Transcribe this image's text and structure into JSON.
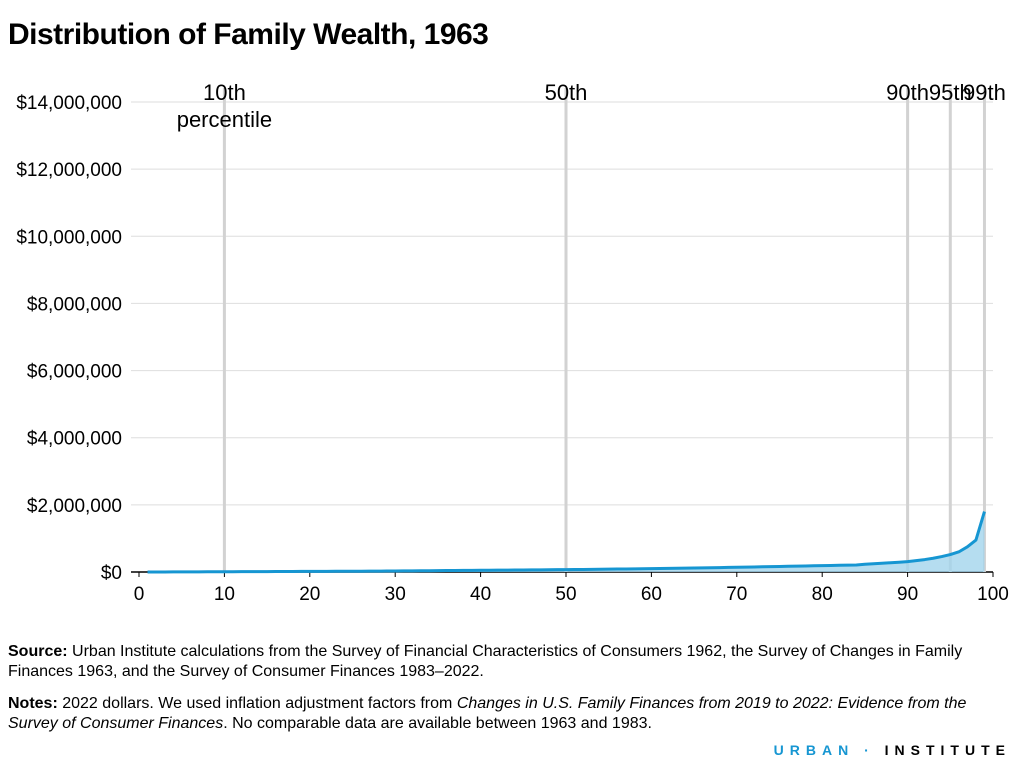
{
  "chart_data": {
    "type": "area",
    "title": "Distribution of Family Wealth, 1963",
    "x": [
      1,
      2,
      3,
      4,
      5,
      6,
      7,
      8,
      9,
      10,
      11,
      12,
      13,
      14,
      15,
      16,
      17,
      18,
      19,
      20,
      21,
      22,
      23,
      24,
      25,
      26,
      27,
      28,
      29,
      30,
      31,
      32,
      33,
      34,
      35,
      36,
      37,
      38,
      39,
      40,
      41,
      42,
      43,
      44,
      45,
      46,
      47,
      48,
      49,
      50,
      51,
      52,
      53,
      54,
      55,
      56,
      57,
      58,
      59,
      60,
      61,
      62,
      63,
      64,
      65,
      66,
      67,
      68,
      69,
      70,
      71,
      72,
      73,
      74,
      75,
      76,
      77,
      78,
      79,
      80,
      81,
      82,
      83,
      84,
      85,
      86,
      87,
      88,
      89,
      90,
      91,
      92,
      93,
      94,
      95,
      96,
      97,
      98,
      99
    ],
    "values": [
      0,
      0,
      1000,
      2000,
      3000,
      4000,
      5000,
      6000,
      7000,
      8000,
      9000,
      10000,
      11000,
      12000,
      13000,
      14000,
      15000,
      16000,
      17000,
      18000,
      19000,
      20000,
      21000,
      22000,
      23000,
      24000,
      25000,
      27000,
      29000,
      31000,
      33000,
      35000,
      37000,
      39000,
      41000,
      43000,
      45000,
      47000,
      49000,
      51000,
      53000,
      55000,
      57000,
      59000,
      61000,
      63000,
      65000,
      67000,
      69000,
      71000,
      73000,
      76000,
      79000,
      82000,
      85000,
      88000,
      91000,
      94000,
      97000,
      100000,
      104000,
      108000,
      112000,
      116000,
      120000,
      124000,
      128000,
      132000,
      136000,
      140000,
      145000,
      150000,
      155000,
      160000,
      165000,
      170000,
      175000,
      180000,
      185000,
      190000,
      195000,
      200000,
      205000,
      210000,
      230000,
      245000,
      260000,
      275000,
      290000,
      310000,
      340000,
      370000,
      410000,
      460000,
      520000,
      600000,
      750000,
      950000,
      1800000
    ],
    "color": "#1696d2",
    "area_color": "#a2d4ec",
    "xlim": [
      0,
      100
    ],
    "xticks": [
      0,
      10,
      20,
      30,
      40,
      50,
      60,
      70,
      80,
      90,
      100
    ],
    "ylim": [
      0,
      14000000
    ],
    "yticks": [
      {
        "value": 0,
        "label": "$0"
      },
      {
        "value": 2000000,
        "label": "$2,000,000"
      },
      {
        "value": 4000000,
        "label": "$4,000,000"
      },
      {
        "value": 6000000,
        "label": "$6,000,000"
      },
      {
        "value": 8000000,
        "label": "$8,000,000"
      },
      {
        "value": 10000000,
        "label": "$10,000,000"
      },
      {
        "value": 12000000,
        "label": "$12,000,000"
      },
      {
        "value": 14000000,
        "label": "$14,000,000"
      }
    ],
    "grid": true,
    "markers": [
      {
        "x": 10,
        "label": [
          "10th",
          "percentile"
        ]
      },
      {
        "x": 50,
        "label": [
          "50th"
        ]
      },
      {
        "x": 90,
        "label": [
          "90th"
        ]
      },
      {
        "x": 95,
        "label": [
          "95th"
        ]
      },
      {
        "x": 99,
        "label": [
          "99th"
        ]
      }
    ]
  },
  "footer": {
    "source_label": "Source:",
    "source": "Urban Institute calculations from the Survey of Financial Characteristics of Consumers 1962, the Survey of Changes in Family Finances 1963, and the Survey of Consumer Finances 1983–2022.",
    "notes_label": "Notes:",
    "notes": [
      "2022 dollars. We used inflation adjustment factors from ",
      "Changes in U.S. Family Finances from 2019 to 2022: Evidence from the Survey of Consumer Finances",
      ". No comparable data are available between 1963 and 1983."
    ],
    "logo": [
      "URBAN",
      "·",
      "INSTITUTE"
    ]
  }
}
